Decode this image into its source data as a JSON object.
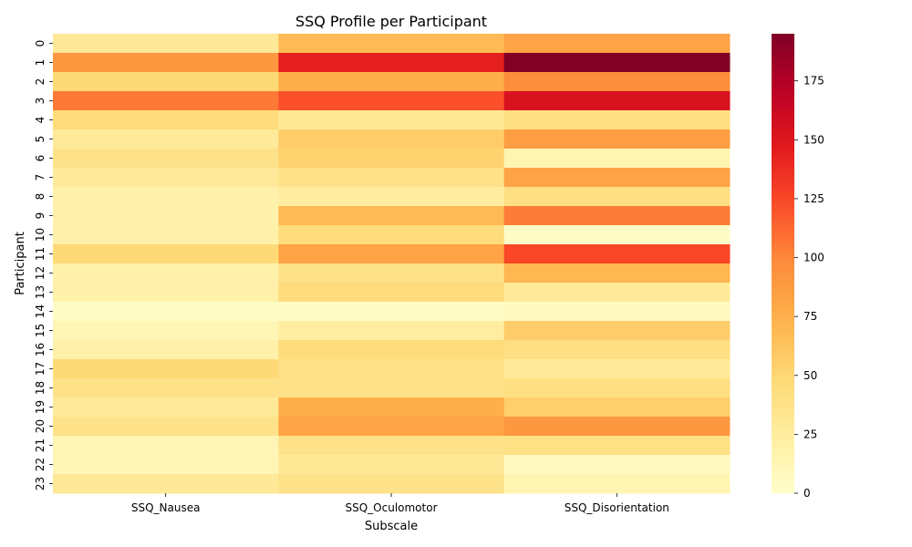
{
  "chart_data": {
    "type": "heatmap",
    "title": "SSQ Profile per Participant",
    "xlabel": "Subscale",
    "ylabel": "Participant",
    "x_categories": [
      "SSQ_Nausea",
      "SSQ_Oculomotor",
      "SSQ_Disorientation"
    ],
    "y_categories": [
      "0",
      "1",
      "2",
      "3",
      "4",
      "5",
      "6",
      "7",
      "8",
      "9",
      "10",
      "11",
      "12",
      "13",
      "14",
      "15",
      "16",
      "17",
      "18",
      "19",
      "20",
      "21",
      "22",
      "23"
    ],
    "values": [
      [
        29,
        68,
        83
      ],
      [
        90,
        144,
        195
      ],
      [
        48,
        76,
        97
      ],
      [
        105,
        121,
        153
      ],
      [
        45,
        30,
        41
      ],
      [
        28,
        56,
        86
      ],
      [
        38,
        53,
        14
      ],
      [
        28,
        38,
        83
      ],
      [
        19,
        25,
        41
      ],
      [
        19,
        68,
        104
      ],
      [
        19,
        45,
        3
      ],
      [
        48,
        83,
        125
      ],
      [
        19,
        38,
        70
      ],
      [
        19,
        45,
        28
      ],
      [
        4,
        4,
        7
      ],
      [
        13,
        23,
        56
      ],
      [
        19,
        45,
        41
      ],
      [
        48,
        38,
        28
      ],
      [
        38,
        38,
        41
      ],
      [
        28,
        76,
        55
      ],
      [
        38,
        83,
        90
      ],
      [
        13,
        38,
        40
      ],
      [
        13,
        30,
        7
      ],
      [
        29,
        38,
        14
      ]
    ],
    "colorbar": {
      "vmin": 0,
      "vmax": 195,
      "ticks": [
        0,
        25,
        50,
        75,
        100,
        125,
        150,
        175
      ],
      "colormap": "YlOrRd"
    },
    "grid": false,
    "legend": "colorbar-right"
  }
}
